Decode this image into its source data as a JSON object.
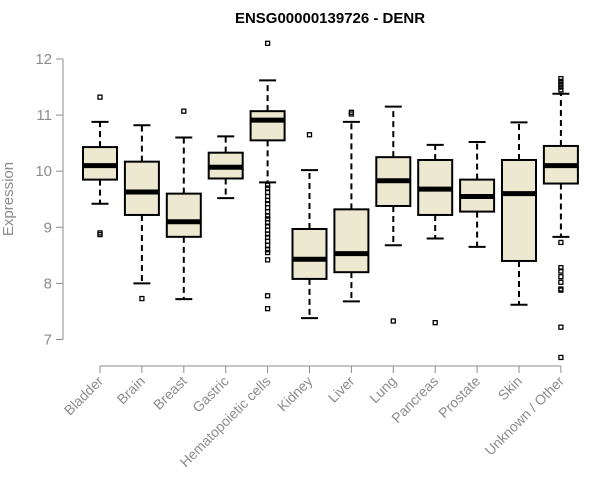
{
  "chart_data": {
    "type": "boxplot",
    "title": "ENSG00000139726 - DENR",
    "xlabel": "",
    "ylabel": "Expression",
    "ylim": [
      6.5,
      12.35
    ],
    "yticks": [
      7,
      8,
      9,
      10,
      11,
      12
    ],
    "ytick_labels": [
      "7",
      "8",
      "9",
      "10",
      "11",
      "12"
    ],
    "box_color": "#ede8d0",
    "categories": [
      "Bladder",
      "Brain",
      "Breast",
      "Gastric",
      "Hematopoietic cells",
      "Kidney",
      "Liver",
      "Lung",
      "Pancreas",
      "Prostate",
      "Skin",
      "Unknown / Other"
    ],
    "boxes": [
      {
        "whisker_low": 9.42,
        "q1": 9.85,
        "median": 10.1,
        "q3": 10.43,
        "whisker_high": 10.88,
        "outliers": [
          11.32,
          8.9,
          8.87
        ]
      },
      {
        "whisker_low": 8.0,
        "q1": 9.22,
        "median": 9.63,
        "q3": 10.17,
        "whisker_high": 10.82,
        "outliers": [
          7.73
        ]
      },
      {
        "whisker_low": 7.72,
        "q1": 8.83,
        "median": 9.1,
        "q3": 9.6,
        "whisker_high": 10.6,
        "outliers": [
          11.07
        ]
      },
      {
        "whisker_low": 9.52,
        "q1": 9.87,
        "median": 10.07,
        "q3": 10.33,
        "whisker_high": 10.62,
        "outliers": []
      },
      {
        "whisker_low": 9.8,
        "q1": 10.55,
        "median": 10.91,
        "q3": 11.07,
        "whisker_high": 11.62,
        "outliers": [
          12.28,
          9.75,
          9.7,
          9.62,
          9.55,
          9.48,
          9.42,
          9.35,
          9.28,
          9.2,
          9.15,
          9.08,
          9.02,
          8.95,
          8.88,
          8.82,
          8.75,
          8.68,
          8.6,
          8.55,
          8.42,
          7.78,
          7.55
        ]
      },
      {
        "whisker_low": 7.38,
        "q1": 8.08,
        "median": 8.43,
        "q3": 8.97,
        "whisker_high": 10.02,
        "outliers": [
          10.65
        ]
      },
      {
        "whisker_low": 7.68,
        "q1": 8.2,
        "median": 8.53,
        "q3": 9.32,
        "whisker_high": 10.88,
        "outliers": [
          11.02,
          11.05
        ]
      },
      {
        "whisker_low": 8.68,
        "q1": 9.38,
        "median": 9.83,
        "q3": 10.25,
        "whisker_high": 11.15,
        "outliers": [
          7.33
        ]
      },
      {
        "whisker_low": 8.8,
        "q1": 9.22,
        "median": 9.68,
        "q3": 10.2,
        "whisker_high": 10.47,
        "outliers": [
          7.3
        ]
      },
      {
        "whisker_low": 8.65,
        "q1": 9.28,
        "median": 9.55,
        "q3": 9.85,
        "whisker_high": 10.52,
        "outliers": []
      },
      {
        "whisker_low": 7.62,
        "q1": 8.4,
        "median": 9.6,
        "q3": 10.2,
        "whisker_high": 10.87,
        "outliers": []
      },
      {
        "whisker_low": 8.83,
        "q1": 9.78,
        "median": 10.1,
        "q3": 10.45,
        "whisker_high": 11.38,
        "outliers": [
          11.65,
          11.6,
          11.55,
          11.5,
          11.45,
          8.73,
          8.28,
          8.22,
          8.12,
          8.02,
          7.9,
          7.88,
          7.22,
          6.68
        ]
      }
    ]
  }
}
